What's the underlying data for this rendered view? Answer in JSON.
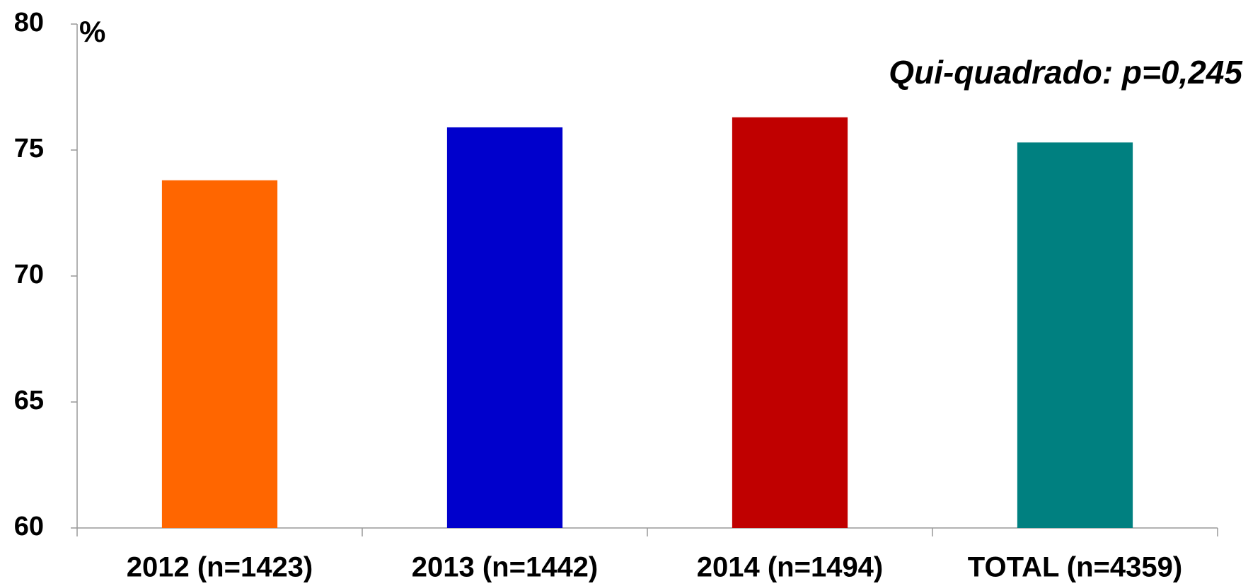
{
  "chart_data": {
    "type": "bar",
    "ylabel": "%",
    "annotation": "Qui-quadrado: p=0,245",
    "categories": [
      "2012 (n=1423)",
      "2013 (n=1442)",
      "2014 (n=1494)",
      "TOTAL (n=4359)"
    ],
    "values": [
      73.8,
      75.9,
      76.3,
      75.3
    ],
    "colors": [
      "#ff6600",
      "#0000cc",
      "#c00000",
      "#008080"
    ],
    "ylim": [
      60,
      80
    ],
    "yticks": [
      60,
      65,
      70,
      75,
      80
    ],
    "grid": false
  }
}
